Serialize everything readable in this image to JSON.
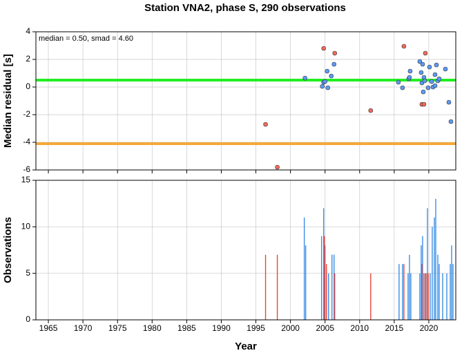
{
  "chart_data": [
    {
      "type": "scatter",
      "title": "Station VNA2, phase S, 290 observations",
      "ylabel": "Median residual [s]",
      "annotation": "median = 0.50, smad = 4.60",
      "xlim": [
        1963.2,
        2023.9
      ],
      "xticks": [
        1965,
        1970,
        1975,
        1980,
        1985,
        1990,
        1995,
        2000,
        2005,
        2010,
        2015,
        2020
      ],
      "ylim": [
        -6,
        4
      ],
      "yticks": [
        -6,
        -4,
        -2,
        0,
        2,
        4
      ],
      "grid": true,
      "reference_lines": [
        {
          "value": 0.5,
          "color": "#22ee22"
        },
        {
          "value": -4.1,
          "color": "#f5a83a"
        }
      ],
      "series": [
        {
          "color": "#5b9bf5",
          "x": [
            2002.1,
            2004.6,
            2004.8,
            2005.0,
            2005.3,
            2005.4,
            2005.9,
            2006.3,
            2015.6,
            2016.2,
            2017.1,
            2017.3,
            2017.2,
            2018.7,
            2018.9,
            2019.1,
            2019.0,
            2019.2,
            2019.3,
            2019.4,
            2019.9,
            2020.1,
            2020.4,
            2020.6,
            2020.9,
            2021.1,
            2021.3,
            2021.5,
            2022.4,
            2022.9,
            2023.2,
            2020.9
          ],
          "values": [
            0.65,
            0.05,
            0.35,
            0.4,
            1.15,
            -0.05,
            0.8,
            1.65,
            0.35,
            -0.05,
            0.6,
            1.15,
            0.7,
            1.85,
            1.05,
            1.65,
            0.3,
            -0.35,
            0.7,
            0.45,
            -0.05,
            1.45,
            0.4,
            0.0,
            0.9,
            1.6,
            0.45,
            0.6,
            1.3,
            -1.1,
            -2.5,
            0.1
          ]
        },
        {
          "color": "#f06a5a",
          "x": [
            2004.8,
            2006.4,
            1996.4,
            1998.1,
            2011.6,
            2016.4,
            2019.5,
            2019.0,
            2019.3
          ],
          "values": [
            2.8,
            2.45,
            -2.7,
            -5.8,
            -1.7,
            2.95,
            2.45,
            -1.25,
            -1.25
          ]
        }
      ]
    },
    {
      "type": "bar",
      "xlabel": "Year",
      "ylabel": "Observations",
      "xlim": [
        1963.2,
        2023.9
      ],
      "xticks": [
        1965,
        1970,
        1975,
        1980,
        1985,
        1990,
        1995,
        2000,
        2005,
        2010,
        2015,
        2020
      ],
      "ylim": [
        0,
        15
      ],
      "yticks": [
        0,
        5,
        10,
        15
      ],
      "grid": true,
      "series": [
        {
          "color": "#3a8ee6",
          "x": [
            2002.0,
            2002.2,
            2004.5,
            2004.8,
            2005.0,
            2005.5,
            2006.0,
            2006.3,
            2015.7,
            2016.2,
            2017.0,
            2017.2,
            2017.4,
            2018.7,
            2018.9,
            2019.1,
            2019.5,
            2019.8,
            2020.2,
            2020.5,
            2020.8,
            2021.0,
            2021.3,
            2021.5,
            2022.0,
            2022.6,
            2023.1,
            2023.3,
            2023.5
          ],
          "values": [
            11,
            8,
            9,
            12,
            8,
            5,
            7,
            7,
            6,
            6,
            5,
            7,
            5,
            5,
            8,
            9,
            5,
            12,
            5,
            10,
            11,
            13,
            7,
            6,
            5,
            5,
            6,
            8,
            6
          ]
        },
        {
          "color": "#e8463a",
          "x": [
            1996.4,
            1998.1,
            2004.9,
            2005.2,
            2006.4,
            2011.6,
            2016.4,
            2019.0,
            2019.3,
            2019.6,
            2019.9
          ],
          "values": [
            7,
            7,
            9,
            6,
            5,
            5,
            6,
            6,
            5,
            5,
            5
          ]
        }
      ]
    }
  ]
}
